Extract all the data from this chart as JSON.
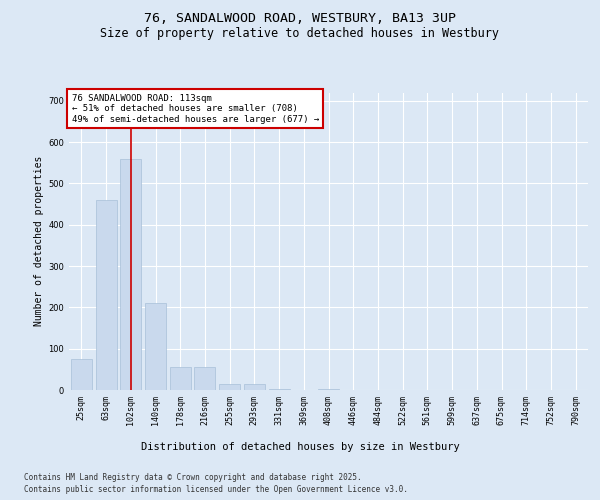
{
  "title": "76, SANDALWOOD ROAD, WESTBURY, BA13 3UP",
  "subtitle": "Size of property relative to detached houses in Westbury",
  "xlabel": "Distribution of detached houses by size in Westbury",
  "ylabel": "Number of detached properties",
  "categories": [
    "25sqm",
    "63sqm",
    "102sqm",
    "140sqm",
    "178sqm",
    "216sqm",
    "255sqm",
    "293sqm",
    "331sqm",
    "369sqm",
    "408sqm",
    "446sqm",
    "484sqm",
    "522sqm",
    "561sqm",
    "599sqm",
    "637sqm",
    "675sqm",
    "714sqm",
    "752sqm",
    "790sqm"
  ],
  "values": [
    75,
    460,
    560,
    210,
    55,
    55,
    15,
    15,
    3,
    0,
    3,
    0,
    0,
    0,
    0,
    0,
    0,
    0,
    0,
    0,
    0
  ],
  "bar_color": "#c9d9ed",
  "bar_edge_color": "#a8bfd8",
  "vline_x": 2,
  "vline_color": "#cc0000",
  "annotation_text": "76 SANDALWOOD ROAD: 113sqm\n← 51% of detached houses are smaller (708)\n49% of semi-detached houses are larger (677) →",
  "annotation_box_color": "#ffffff",
  "annotation_box_edge_color": "#cc0000",
  "ylim": [
    0,
    720
  ],
  "yticks": [
    0,
    100,
    200,
    300,
    400,
    500,
    600,
    700
  ],
  "bg_color": "#dce8f5",
  "plot_bg_color": "#dce8f5",
  "footer_line1": "Contains HM Land Registry data © Crown copyright and database right 2025.",
  "footer_line2": "Contains public sector information licensed under the Open Government Licence v3.0.",
  "title_fontsize": 9.5,
  "subtitle_fontsize": 8.5,
  "xlabel_fontsize": 7.5,
  "ylabel_fontsize": 7,
  "tick_fontsize": 6,
  "annotation_fontsize": 6.5,
  "footer_fontsize": 5.5
}
